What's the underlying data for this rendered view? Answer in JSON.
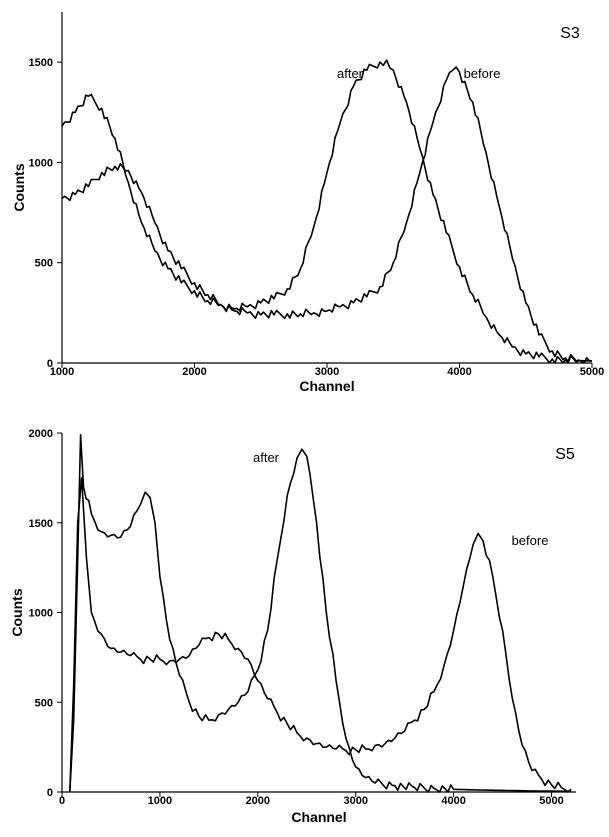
{
  "chart_data": [
    {
      "type": "line",
      "panel_label": "S3",
      "xlabel": "Channel",
      "ylabel": "Counts",
      "xlim": [
        1000,
        5000
      ],
      "ylim": [
        0,
        1750
      ],
      "xticks": [
        1000,
        2000,
        3000,
        4000,
        5000
      ],
      "yticks": [
        0,
        500,
        1000,
        1500
      ],
      "grid": false,
      "series": [
        {
          "name": "after",
          "x": [
            1000,
            1100,
            1200,
            1300,
            1400,
            1500,
            1600,
            1700,
            1800,
            1900,
            2000,
            2100,
            2200,
            2300,
            2400,
            2500,
            2600,
            2700,
            2800,
            2900,
            3000,
            3100,
            3200,
            3300,
            3400,
            3450,
            3500,
            3600,
            3700,
            3800,
            3900,
            4000,
            4100,
            4200,
            4300,
            4400,
            4500,
            4600,
            4700,
            4800,
            4900,
            5000
          ],
          "values": [
            1180,
            1250,
            1330,
            1270,
            1120,
            900,
            700,
            560,
            470,
            400,
            360,
            310,
            290,
            270,
            280,
            300,
            320,
            370,
            470,
            680,
            950,
            1200,
            1380,
            1460,
            1500,
            1510,
            1460,
            1300,
            1070,
            840,
            650,
            480,
            340,
            230,
            140,
            80,
            45,
            30,
            20,
            15,
            12,
            10
          ]
        },
        {
          "name": "before",
          "x": [
            1000,
            1100,
            1200,
            1300,
            1400,
            1500,
            1600,
            1700,
            1800,
            1900,
            2000,
            2100,
            2200,
            2300,
            2400,
            2500,
            2600,
            2700,
            2800,
            2900,
            3000,
            3100,
            3200,
            3300,
            3400,
            3500,
            3600,
            3700,
            3800,
            3900,
            3950,
            4000,
            4100,
            4200,
            4300,
            4400,
            4500,
            4600,
            4700,
            4800,
            4900,
            5000
          ],
          "values": [
            820,
            840,
            880,
            950,
            980,
            960,
            850,
            700,
            560,
            470,
            400,
            340,
            290,
            260,
            250,
            240,
            240,
            245,
            245,
            250,
            260,
            280,
            300,
            330,
            380,
            500,
            700,
            950,
            1200,
            1410,
            1460,
            1450,
            1300,
            1050,
            780,
            520,
            300,
            140,
            60,
            25,
            15,
            10
          ]
        }
      ]
    },
    {
      "type": "line",
      "panel_label": "S5",
      "xlabel": "Channel",
      "ylabel": "Counts",
      "xlim": [
        0,
        5250
      ],
      "ylim": [
        0,
        2000
      ],
      "xticks": [
        0,
        1000,
        2000,
        3000,
        4000,
        5000
      ],
      "yticks": [
        0,
        500,
        1000,
        1500,
        2000
      ],
      "grid": false,
      "series": [
        {
          "name": "after",
          "x": [
            80,
            120,
            160,
            190,
            220,
            300,
            400,
            500,
            600,
            700,
            800,
            850,
            900,
            950,
            1000,
            1100,
            1200,
            1300,
            1400,
            1500,
            1600,
            1700,
            1800,
            1900,
            2000,
            2100,
            2200,
            2300,
            2400,
            2450,
            2500,
            2600,
            2700,
            2800,
            2900,
            3000,
            3100,
            3200,
            3400,
            3600,
            3800,
            4000,
            4200,
            4400,
            4600,
            4800,
            5000,
            5200
          ],
          "values": [
            0,
            400,
            1300,
            1990,
            1700,
            1550,
            1450,
            1430,
            1420,
            1480,
            1600,
            1670,
            1640,
            1500,
            1200,
            850,
            650,
            500,
            420,
            400,
            430,
            460,
            500,
            560,
            680,
            900,
            1300,
            1650,
            1860,
            1910,
            1870,
            1500,
            1000,
            620,
            300,
            140,
            80,
            50,
            35,
            25,
            20,
            15,
            12,
            10,
            8,
            6,
            5,
            4
          ]
        },
        {
          "name": "before",
          "x": [
            80,
            120,
            160,
            200,
            250,
            300,
            400,
            500,
            600,
            700,
            800,
            900,
            1000,
            1100,
            1200,
            1300,
            1400,
            1500,
            1600,
            1700,
            1800,
            1900,
            2000,
            2100,
            2200,
            2300,
            2400,
            2500,
            2600,
            2700,
            2800,
            2900,
            3000,
            3100,
            3200,
            3300,
            3400,
            3500,
            3600,
            3700,
            3800,
            3900,
            4000,
            4100,
            4200,
            4250,
            4300,
            4400,
            4500,
            4600,
            4700,
            4800,
            4900,
            5000,
            5100,
            5200
          ],
          "values": [
            0,
            600,
            1500,
            1750,
            1300,
            1000,
            880,
            800,
            780,
            760,
            740,
            740,
            740,
            730,
            740,
            760,
            820,
            860,
            880,
            850,
            800,
            740,
            620,
            520,
            440,
            380,
            330,
            300,
            270,
            250,
            240,
            230,
            235,
            240,
            260,
            270,
            300,
            340,
            400,
            460,
            560,
            700,
            900,
            1150,
            1380,
            1440,
            1400,
            1200,
            900,
            520,
            260,
            120,
            70,
            40,
            25,
            15
          ]
        }
      ]
    }
  ]
}
